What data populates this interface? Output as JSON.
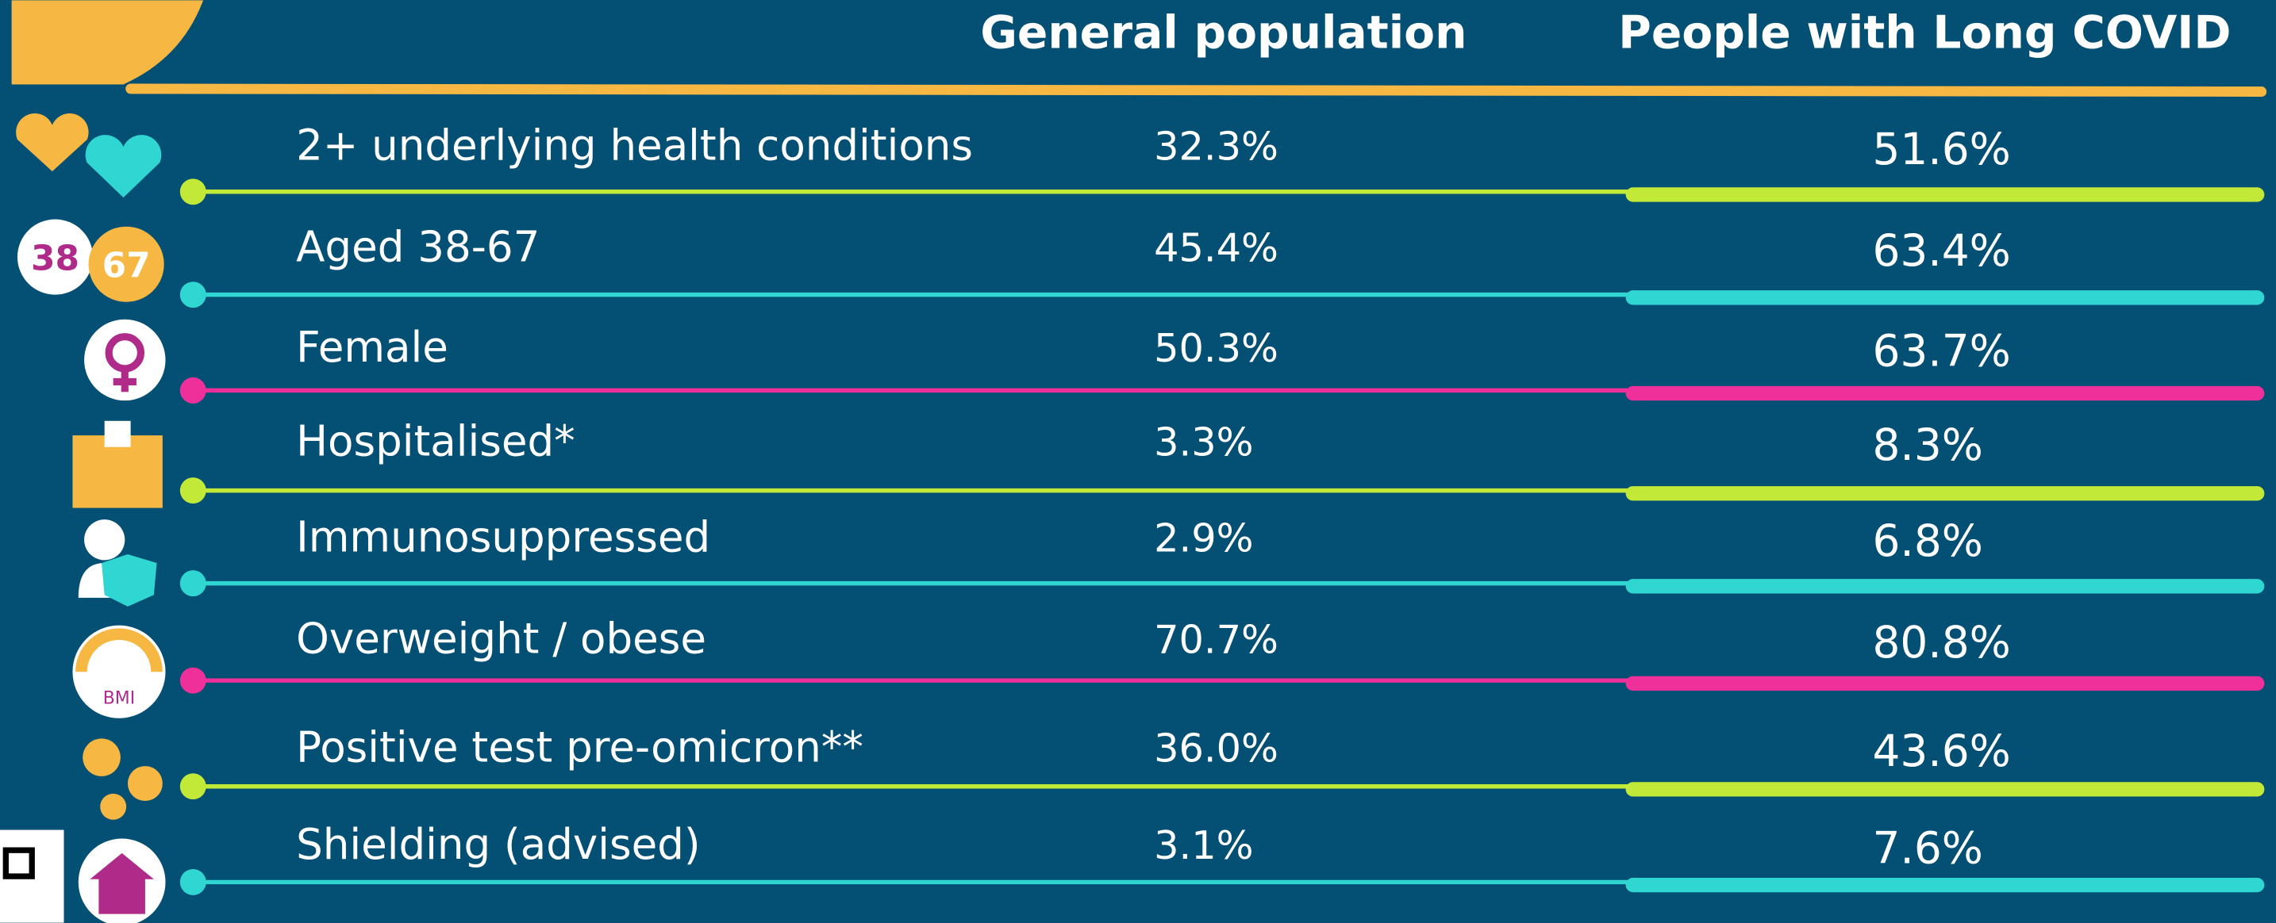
{
  "header": {
    "general": "General population",
    "long_covid": "People with Long COVID"
  },
  "rows": [
    {
      "label": "2+ underlying health conditions",
      "general": "32.3%",
      "long_covid": "51.6%",
      "color": "#c2e838"
    },
    {
      "label": "Aged 38-67",
      "general": "45.4%",
      "long_covid": "63.4%",
      "color": "#2fd6d2"
    },
    {
      "label": "Female",
      "general": "50.3%",
      "long_covid": "63.7%",
      "color": "#f0309a"
    },
    {
      "label": "Hospitalised*",
      "general": "3.3%",
      "long_covid": "8.3%",
      "color": "#c2e838"
    },
    {
      "label": "Immunosuppressed",
      "general": "2.9%",
      "long_covid": "6.8%",
      "color": "#2fd6d2"
    },
    {
      "label": "Overweight / obese",
      "general": "70.7%",
      "long_covid": "80.8%",
      "color": "#f0309a"
    },
    {
      "label": "Positive test pre-omicron**",
      "general": "36.0%",
      "long_covid": "43.6%",
      "color": "#c2e838"
    },
    {
      "label": "Shielding (advised)",
      "general": "3.1%",
      "long_covid": "7.6%",
      "color": "#2fd6d2"
    }
  ],
  "icons": {
    "age_low": "38",
    "age_high": "67",
    "bmi": "BMI"
  }
}
